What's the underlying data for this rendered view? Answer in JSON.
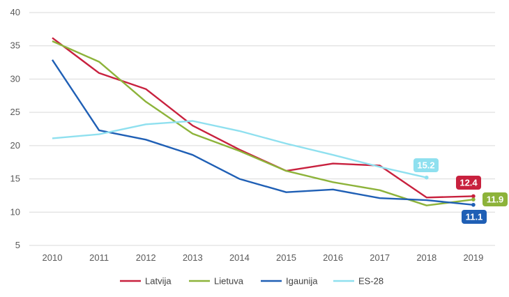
{
  "chart_data": {
    "type": "line",
    "title": "",
    "xlabel": "",
    "ylabel": "",
    "x": [
      "2010",
      "2011",
      "2012",
      "2013",
      "2014",
      "2015",
      "2016",
      "2017",
      "2018",
      "2019"
    ],
    "ylim": [
      5,
      40
    ],
    "yticks": [
      5,
      10,
      15,
      20,
      25,
      30,
      35,
      40
    ],
    "grid": "horizontal",
    "legend_position": "bottom",
    "series": [
      {
        "name": "Latvija",
        "color": "#c8213e",
        "values": [
          36.2,
          30.9,
          28.5,
          23.0,
          19.4,
          16.2,
          17.3,
          17.0,
          12.2,
          12.4
        ],
        "end_label": "12.4"
      },
      {
        "name": "Lietuva",
        "color": "#8db33a",
        "values": [
          35.7,
          32.6,
          26.6,
          21.8,
          19.2,
          16.2,
          14.5,
          13.3,
          11.0,
          11.9
        ],
        "end_label": "11.9"
      },
      {
        "name": "Igaunija",
        "color": "#1f5fb5",
        "values": [
          32.9,
          22.3,
          20.9,
          18.6,
          15.0,
          13.0,
          13.4,
          12.1,
          11.8,
          11.1
        ],
        "end_label": "11.1"
      },
      {
        "name": "ES-28",
        "color": "#8fe0ef",
        "values": [
          21.1,
          21.7,
          23.2,
          23.7,
          22.2,
          20.3,
          18.6,
          16.8,
          15.2,
          null
        ],
        "end_label": "15.2"
      }
    ]
  }
}
